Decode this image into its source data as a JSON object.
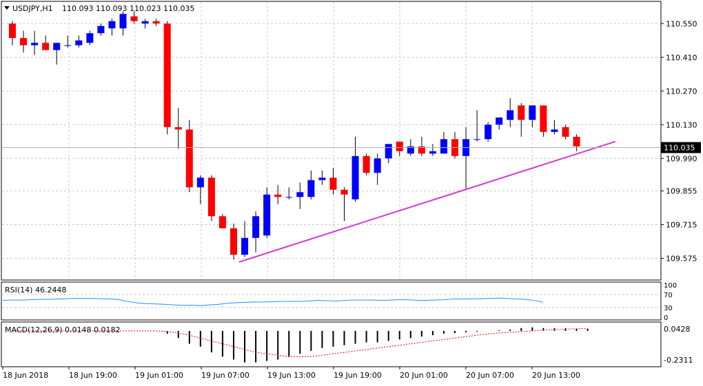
{
  "header": {
    "symbol": "USDJPY,H1",
    "ohlc": "110.093 110.093 110.023 110.035"
  },
  "rsi": {
    "label": "RSI(14) 46.2448",
    "levels": [
      "100",
      "70",
      "30",
      "0"
    ],
    "values": [
      52,
      53,
      53,
      54,
      55,
      55,
      56,
      57,
      58,
      58,
      58,
      57,
      56,
      54,
      48,
      44,
      42,
      41,
      40,
      38,
      37,
      37,
      36,
      38,
      40,
      43,
      45,
      46,
      47,
      47,
      48,
      49,
      49,
      49,
      50,
      52,
      51,
      50,
      52,
      53,
      53,
      53,
      52,
      53,
      54,
      54,
      52,
      52,
      53,
      54,
      56,
      56,
      57,
      57,
      58,
      59,
      58,
      56,
      55,
      52,
      46
    ]
  },
  "macd": {
    "label": "MACD(12,26,9) 0.0148 0.0182",
    "axis_labels": [
      "0.0428",
      "-0.2311"
    ],
    "ylim": [
      -0.2311,
      0.0428
    ],
    "histogram": [
      0,
      0,
      0,
      0,
      0,
      0,
      0,
      0,
      0,
      0,
      0,
      0,
      0,
      0,
      -0.02,
      -0.05,
      -0.09,
      -0.11,
      -0.15,
      -0.18,
      -0.2,
      -0.22,
      -0.22,
      -0.21,
      -0.2,
      -0.18,
      -0.16,
      -0.14,
      -0.12,
      -0.11,
      -0.1,
      -0.09,
      -0.08,
      -0.08,
      -0.07,
      -0.06,
      -0.05,
      -0.04,
      -0.03,
      -0.02,
      -0.015,
      -0.01,
      -0.005,
      0,
      0.005,
      0.01,
      0.02,
      0.025,
      0.02,
      0.02,
      0.02,
      0.015,
      0.015
    ],
    "signal": [
      0,
      0,
      0,
      0,
      0,
      0,
      0,
      0,
      0,
      0,
      0,
      0,
      0,
      0,
      -0.005,
      -0.015,
      -0.03,
      -0.05,
      -0.07,
      -0.09,
      -0.11,
      -0.13,
      -0.15,
      -0.16,
      -0.17,
      -0.18,
      -0.18,
      -0.18,
      -0.17,
      -0.16,
      -0.15,
      -0.14,
      -0.13,
      -0.12,
      -0.11,
      -0.1,
      -0.09,
      -0.08,
      -0.07,
      -0.06,
      -0.05,
      -0.04,
      -0.03,
      -0.02,
      -0.015,
      -0.01,
      -0.005,
      0,
      0.005,
      0.01,
      0.012,
      0.015,
      0.018
    ]
  },
  "chart_data": {
    "type": "candlestick",
    "symbol": "USDJPY,H1",
    "ylim": [
      109.505,
      110.625
    ],
    "y_ticks": [
      "110.550",
      "110.410",
      "110.270",
      "110.130",
      "109.990",
      "109.855",
      "109.715",
      "109.575"
    ],
    "y_tick_values": [
      110.55,
      110.41,
      110.27,
      110.13,
      109.99,
      109.855,
      109.715,
      109.575
    ],
    "current_price": "110.035",
    "current_price_value": 110.035,
    "x_ticks": [
      "18 Jun 2018",
      "18 Jun 19:00",
      "19 Jun 01:00",
      "19 Jun 07:00",
      "19 Jun 13:00",
      "19 Jun 19:00",
      "20 Jun 01:00",
      "20 Jun 07:00",
      "20 Jun 13:00"
    ],
    "colors": {
      "bull": "#0000ff",
      "bear": "#ff0000",
      "trendline": "#d633d6",
      "wick": "#000000"
    },
    "candles": [
      {
        "o": 110.55,
        "h": 110.56,
        "l": 110.46,
        "c": 110.49
      },
      {
        "o": 110.49,
        "h": 110.52,
        "l": 110.43,
        "c": 110.46
      },
      {
        "o": 110.46,
        "h": 110.52,
        "l": 110.42,
        "c": 110.47
      },
      {
        "o": 110.47,
        "h": 110.5,
        "l": 110.44,
        "c": 110.44
      },
      {
        "o": 110.44,
        "h": 110.47,
        "l": 110.38,
        "c": 110.47
      },
      {
        "o": 110.46,
        "h": 110.5,
        "l": 110.45,
        "c": 110.46
      },
      {
        "o": 110.46,
        "h": 110.5,
        "l": 110.45,
        "c": 110.48
      },
      {
        "o": 110.47,
        "h": 110.52,
        "l": 110.46,
        "c": 110.51
      },
      {
        "o": 110.51,
        "h": 110.55,
        "l": 110.5,
        "c": 110.54
      },
      {
        "o": 110.53,
        "h": 110.57,
        "l": 110.5,
        "c": 110.56
      },
      {
        "o": 110.53,
        "h": 110.6,
        "l": 110.5,
        "c": 110.59
      },
      {
        "o": 110.58,
        "h": 110.6,
        "l": 110.55,
        "c": 110.56
      },
      {
        "o": 110.55,
        "h": 110.57,
        "l": 110.53,
        "c": 110.56
      },
      {
        "o": 110.56,
        "h": 110.57,
        "l": 110.54,
        "c": 110.55
      },
      {
        "o": 110.55,
        "h": 110.56,
        "l": 110.09,
        "c": 110.12
      },
      {
        "o": 110.12,
        "h": 110.2,
        "l": 110.03,
        "c": 110.11
      },
      {
        "o": 110.11,
        "h": 110.15,
        "l": 109.85,
        "c": 109.87
      },
      {
        "o": 109.87,
        "h": 109.92,
        "l": 109.8,
        "c": 109.91
      },
      {
        "o": 109.91,
        "h": 109.92,
        "l": 109.73,
        "c": 109.75
      },
      {
        "o": 109.75,
        "h": 109.76,
        "l": 109.7,
        "c": 109.7
      },
      {
        "o": 109.7,
        "h": 109.72,
        "l": 109.57,
        "c": 109.59
      },
      {
        "o": 109.59,
        "h": 109.73,
        "l": 109.58,
        "c": 109.66
      },
      {
        "o": 109.66,
        "h": 109.77,
        "l": 109.6,
        "c": 109.75
      },
      {
        "o": 109.67,
        "h": 109.87,
        "l": 109.66,
        "c": 109.84
      },
      {
        "o": 109.84,
        "h": 109.88,
        "l": 109.8,
        "c": 109.83
      },
      {
        "o": 109.83,
        "h": 109.87,
        "l": 109.82,
        "c": 109.83
      },
      {
        "o": 109.83,
        "h": 109.89,
        "l": 109.78,
        "c": 109.85
      },
      {
        "o": 109.83,
        "h": 109.94,
        "l": 109.82,
        "c": 109.9
      },
      {
        "o": 109.9,
        "h": 109.94,
        "l": 109.88,
        "c": 109.91
      },
      {
        "o": 109.91,
        "h": 109.95,
        "l": 109.84,
        "c": 109.86
      },
      {
        "o": 109.86,
        "h": 109.87,
        "l": 109.73,
        "c": 109.84
      },
      {
        "o": 109.82,
        "h": 110.08,
        "l": 109.81,
        "c": 110.0
      },
      {
        "o": 110.0,
        "h": 110.01,
        "l": 109.92,
        "c": 109.93
      },
      {
        "o": 109.93,
        "h": 110.01,
        "l": 109.88,
        "c": 109.99
      },
      {
        "o": 109.99,
        "h": 110.05,
        "l": 109.97,
        "c": 110.05
      },
      {
        "o": 110.06,
        "h": 110.06,
        "l": 110.0,
        "c": 110.02
      },
      {
        "o": 110.01,
        "h": 110.07,
        "l": 110.0,
        "c": 110.04
      },
      {
        "o": 110.04,
        "h": 110.08,
        "l": 110.0,
        "c": 110.01
      },
      {
        "o": 110.01,
        "h": 110.05,
        "l": 110.0,
        "c": 110.02
      },
      {
        "o": 110.01,
        "h": 110.1,
        "l": 110.01,
        "c": 110.07
      },
      {
        "o": 110.07,
        "h": 110.1,
        "l": 109.99,
        "c": 110.0
      },
      {
        "o": 110.0,
        "h": 110.12,
        "l": 109.86,
        "c": 110.07
      },
      {
        "o": 110.07,
        "h": 110.19,
        "l": 110.06,
        "c": 110.07
      },
      {
        "o": 110.07,
        "h": 110.14,
        "l": 110.06,
        "c": 110.13
      },
      {
        "o": 110.13,
        "h": 110.16,
        "l": 110.11,
        "c": 110.16
      },
      {
        "o": 110.15,
        "h": 110.24,
        "l": 110.12,
        "c": 110.19
      },
      {
        "o": 110.21,
        "h": 110.22,
        "l": 110.08,
        "c": 110.15
      },
      {
        "o": 110.15,
        "h": 110.21,
        "l": 110.12,
        "c": 110.21
      },
      {
        "o": 110.21,
        "h": 110.21,
        "l": 110.08,
        "c": 110.1
      },
      {
        "o": 110.1,
        "h": 110.15,
        "l": 110.09,
        "c": 110.11
      },
      {
        "o": 110.12,
        "h": 110.13,
        "l": 110.07,
        "c": 110.08
      },
      {
        "o": 110.08,
        "h": 110.09,
        "l": 110.02,
        "c": 110.04
      }
    ],
    "trendline": {
      "from": {
        "i": 20.5,
        "v": 109.56
      },
      "to": {
        "i": 54.5,
        "v": 110.06
      }
    }
  }
}
